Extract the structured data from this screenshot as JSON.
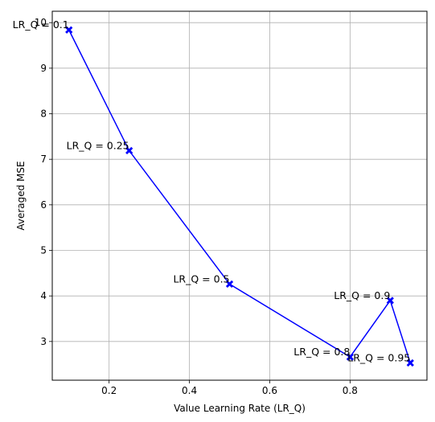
{
  "chart_data": {
    "type": "line",
    "title": "",
    "xlabel": "Value Learning Rate (LR_Q)",
    "ylabel": "Averaged MSE",
    "xlim": [
      0.0585,
      0.9915
    ],
    "ylim": [
      2.15,
      10.25
    ],
    "grid": true,
    "xticks": [
      0.2,
      0.4,
      0.6,
      0.8
    ],
    "xtick_labels": [
      "0.2",
      "0.4",
      "0.6",
      "0.8"
    ],
    "yticks": [
      3,
      4,
      5,
      6,
      7,
      8,
      9,
      10
    ],
    "ytick_labels": [
      "3",
      "4",
      "5",
      "6",
      "7",
      "8",
      "9",
      "10"
    ],
    "series": [
      {
        "color": "#0000ff",
        "marker": "X",
        "x": [
          0.1,
          0.25,
          0.5,
          0.8,
          0.9,
          0.95
        ],
        "y": [
          9.84,
          7.19,
          4.26,
          2.66,
          3.9,
          2.53
        ]
      }
    ],
    "annotations": [
      {
        "text": "LR_Q = 0.1",
        "x": 0.1,
        "y": 9.84
      },
      {
        "text": "LR_Q = 0.25",
        "x": 0.25,
        "y": 7.19
      },
      {
        "text": "LR_Q = 0.5",
        "x": 0.5,
        "y": 4.26
      },
      {
        "text": "LR_Q = 0.8",
        "x": 0.8,
        "y": 2.66
      },
      {
        "text": "LR_Q = 0.9",
        "x": 0.9,
        "y": 3.9
      },
      {
        "text": "LR_Q = 0.95",
        "x": 0.95,
        "y": 2.53
      }
    ]
  }
}
